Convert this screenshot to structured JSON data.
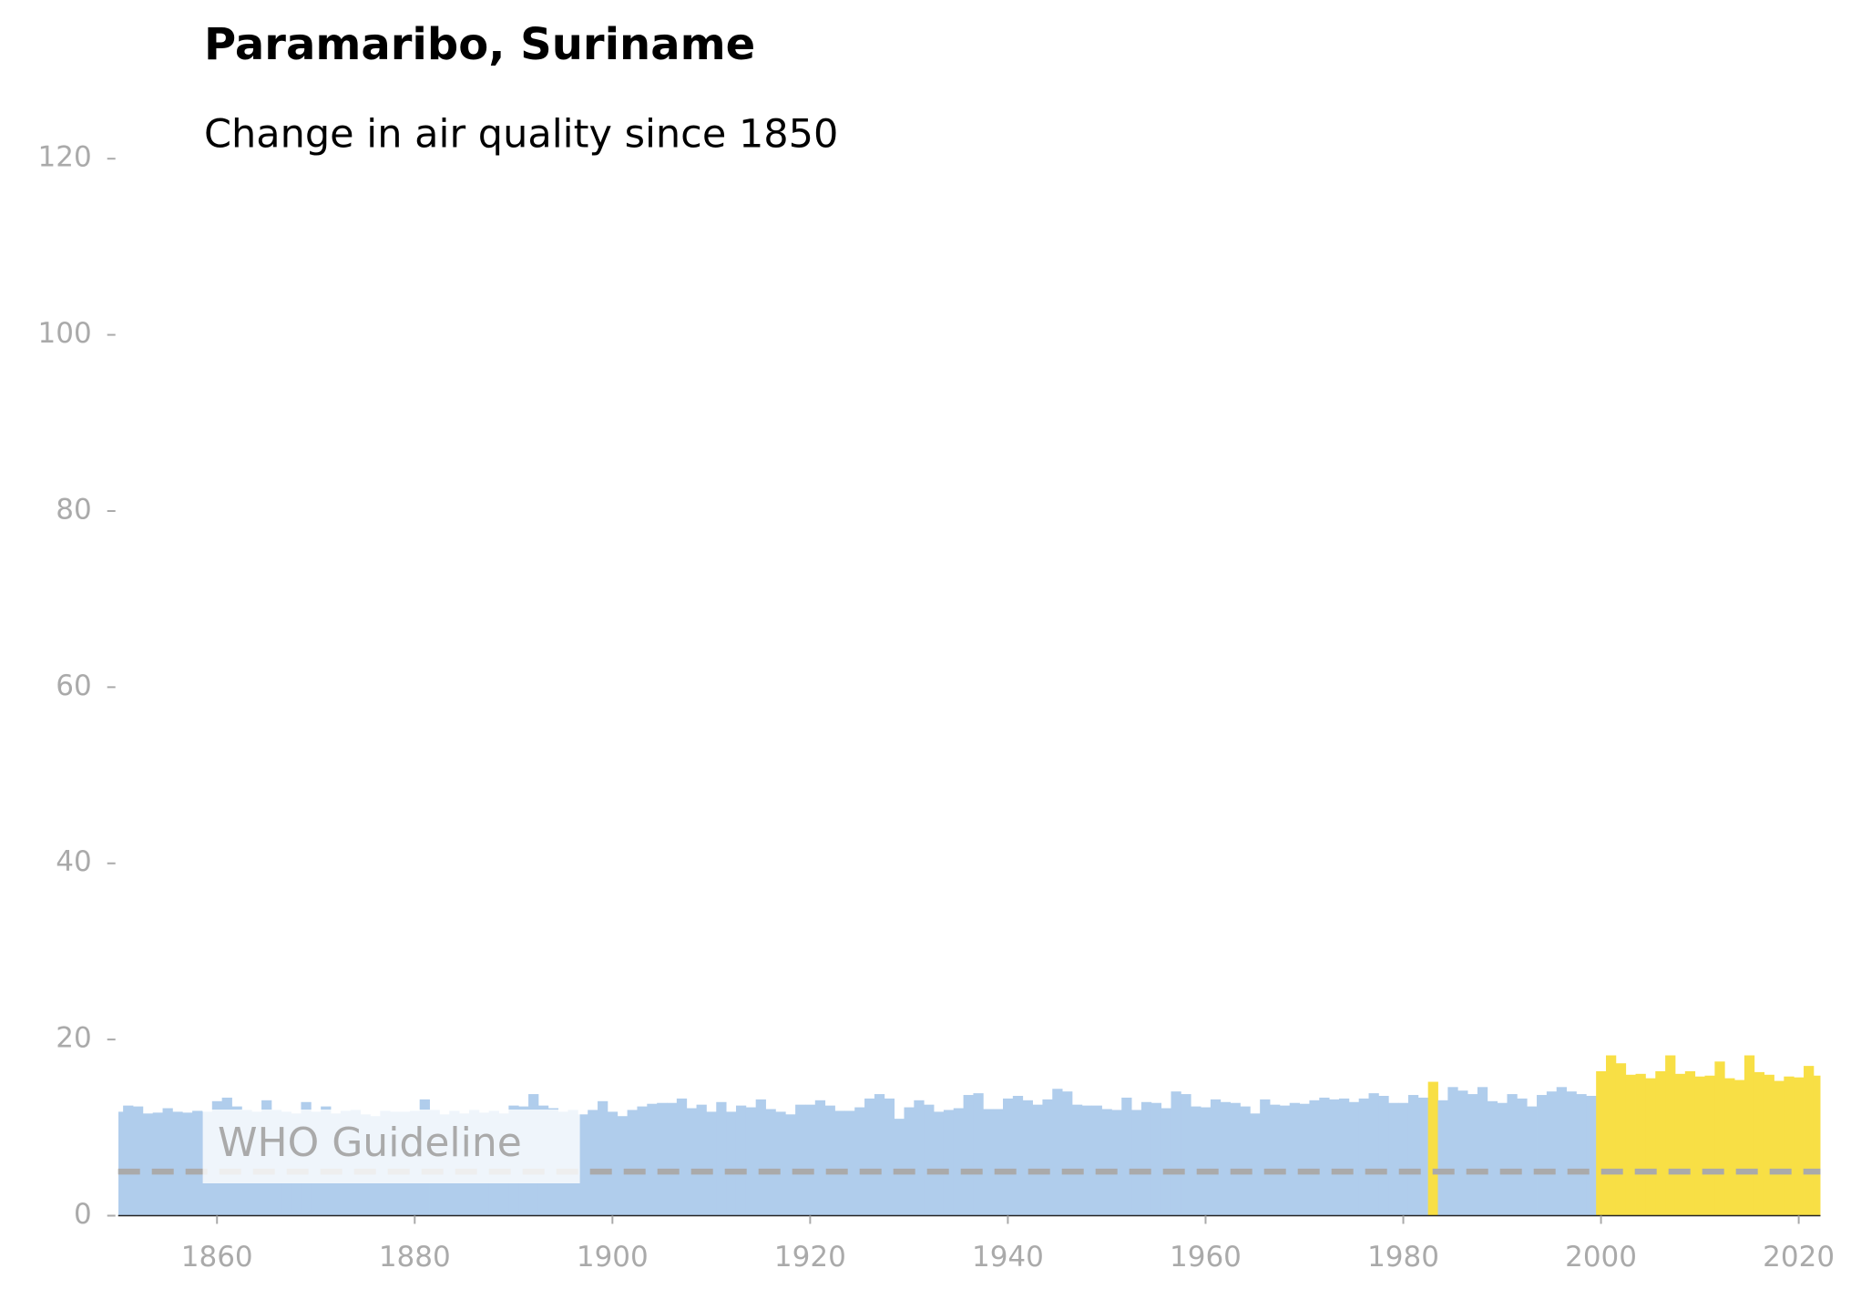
{
  "chart_data": {
    "type": "bar",
    "title": "Paramaribo, Suriname",
    "subtitle": "Change in air quality since 1850",
    "x": [
      1850,
      1851,
      1852,
      1853,
      1854,
      1855,
      1856,
      1857,
      1858,
      1859,
      1860,
      1861,
      1862,
      1863,
      1864,
      1865,
      1866,
      1867,
      1868,
      1869,
      1870,
      1871,
      1872,
      1873,
      1874,
      1875,
      1876,
      1877,
      1878,
      1879,
      1880,
      1881,
      1882,
      1883,
      1884,
      1885,
      1886,
      1887,
      1888,
      1889,
      1890,
      1891,
      1892,
      1893,
      1894,
      1895,
      1896,
      1897,
      1898,
      1899,
      1900,
      1901,
      1902,
      1903,
      1904,
      1905,
      1906,
      1907,
      1908,
      1909,
      1910,
      1911,
      1912,
      1913,
      1914,
      1915,
      1916,
      1917,
      1918,
      1919,
      1920,
      1921,
      1922,
      1923,
      1924,
      1925,
      1926,
      1927,
      1928,
      1929,
      1930,
      1931,
      1932,
      1933,
      1934,
      1935,
      1936,
      1937,
      1938,
      1939,
      1940,
      1941,
      1942,
      1943,
      1944,
      1945,
      1946,
      1947,
      1948,
      1949,
      1950,
      1951,
      1952,
      1953,
      1954,
      1955,
      1956,
      1957,
      1958,
      1959,
      1960,
      1961,
      1962,
      1963,
      1964,
      1965,
      1966,
      1967,
      1968,
      1969,
      1970,
      1971,
      1972,
      1973,
      1974,
      1975,
      1976,
      1977,
      1978,
      1979,
      1980,
      1981,
      1982,
      1983,
      1984,
      1985,
      1986,
      1987,
      1988,
      1989,
      1990,
      1991,
      1992,
      1993,
      1994,
      1995,
      1996,
      1997,
      1998,
      1999,
      2000,
      2001,
      2002,
      2003,
      2004,
      2005,
      2006,
      2007,
      2008,
      2009,
      2010,
      2011,
      2012,
      2013,
      2014,
      2015,
      2016,
      2017,
      2018,
      2019,
      2020,
      2021,
      2022
    ],
    "values": [
      11.8,
      12.5,
      12.4,
      11.6,
      11.7,
      12.2,
      11.8,
      11.7,
      11.9,
      11.8,
      13.0,
      13.4,
      12.4,
      12.0,
      11.8,
      13.1,
      12.0,
      11.8,
      11.6,
      12.9,
      11.8,
      12.4,
      11.6,
      11.9,
      12.0,
      11.5,
      11.3,
      11.9,
      11.8,
      11.8,
      11.9,
      13.2,
      12.0,
      11.5,
      11.9,
      11.6,
      12.0,
      11.7,
      11.9,
      11.6,
      12.5,
      12.4,
      13.8,
      12.5,
      12.2,
      11.8,
      12.0,
      11.5,
      12.0,
      13.0,
      11.8,
      11.3,
      12.0,
      12.4,
      12.7,
      12.8,
      12.8,
      13.3,
      12.2,
      12.6,
      11.8,
      12.9,
      11.8,
      12.5,
      12.3,
      13.2,
      12.1,
      11.8,
      11.5,
      12.6,
      12.6,
      13.1,
      12.5,
      11.9,
      11.9,
      12.3,
      13.3,
      13.8,
      13.3,
      11.0,
      12.3,
      13.1,
      12.6,
      11.8,
      12.0,
      12.2,
      13.7,
      13.9,
      12.1,
      12.1,
      13.3,
      13.6,
      13.1,
      12.6,
      13.2,
      14.4,
      14.1,
      12.6,
      12.5,
      12.5,
      12.1,
      12.0,
      13.4,
      12.0,
      12.9,
      12.8,
      12.2,
      14.1,
      13.8,
      12.4,
      12.3,
      13.2,
      12.9,
      12.8,
      12.4,
      11.6,
      13.2,
      12.6,
      12.5,
      12.8,
      12.7,
      13.1,
      13.4,
      13.2,
      13.3,
      12.9,
      13.3,
      13.9,
      13.6,
      12.8,
      12.8,
      13.7,
      13.4,
      15.2,
      13.1,
      14.6,
      14.2,
      13.8,
      14.6,
      13.0,
      12.8,
      13.8,
      13.3,
      12.4,
      13.7,
      14.1,
      14.6,
      14.1,
      13.8,
      13.6,
      16.4,
      18.2,
      17.3,
      16.0,
      16.1,
      15.6,
      16.4,
      18.2,
      16.1,
      16.4,
      15.8,
      15.9,
      17.5,
      15.6,
      15.4,
      18.2,
      16.3,
      16.0,
      15.3,
      15.8,
      15.7,
      17.0,
      15.9
    ],
    "bar_colors": [
      "#b0cdec",
      "#b0cdec",
      "#b0cdec",
      "#b0cdec",
      "#b0cdec",
      "#b0cdec",
      "#b0cdec",
      "#b0cdec",
      "#b0cdec",
      "#b0cdec",
      "#b0cdec",
      "#b0cdec",
      "#b0cdec",
      "#b0cdec",
      "#b0cdec",
      "#b0cdec",
      "#b0cdec",
      "#b0cdec",
      "#b0cdec",
      "#b0cdec",
      "#b0cdec",
      "#b0cdec",
      "#b0cdec",
      "#b0cdec",
      "#b0cdec",
      "#b0cdec",
      "#b0cdec",
      "#b0cdec",
      "#b0cdec",
      "#b0cdec",
      "#b0cdec",
      "#b0cdec",
      "#b0cdec",
      "#b0cdec",
      "#b0cdec",
      "#b0cdec",
      "#b0cdec",
      "#b0cdec",
      "#b0cdec",
      "#b0cdec",
      "#b0cdec",
      "#b0cdec",
      "#b0cdec",
      "#b0cdec",
      "#b0cdec",
      "#b0cdec",
      "#b0cdec",
      "#b0cdec",
      "#b0cdec",
      "#b0cdec",
      "#b0cdec",
      "#b0cdec",
      "#b0cdec",
      "#b0cdec",
      "#b0cdec",
      "#b0cdec",
      "#b0cdec",
      "#b0cdec",
      "#b0cdec",
      "#b0cdec",
      "#b0cdec",
      "#b0cdec",
      "#b0cdec",
      "#b0cdec",
      "#b0cdec",
      "#b0cdec",
      "#b0cdec",
      "#b0cdec",
      "#b0cdec",
      "#b0cdec",
      "#b0cdec",
      "#b0cdec",
      "#b0cdec",
      "#b0cdec",
      "#b0cdec",
      "#b0cdec",
      "#b0cdec",
      "#b0cdec",
      "#b0cdec",
      "#b0cdec",
      "#b0cdec",
      "#b0cdec",
      "#b0cdec",
      "#b0cdec",
      "#b0cdec",
      "#b0cdec",
      "#b0cdec",
      "#b0cdec",
      "#b0cdec",
      "#b0cdec",
      "#b0cdec",
      "#b0cdec",
      "#b0cdec",
      "#b0cdec",
      "#b0cdec",
      "#b0cdec",
      "#b0cdec",
      "#b0cdec",
      "#b0cdec",
      "#b0cdec",
      "#b0cdec",
      "#b0cdec",
      "#b0cdec",
      "#b0cdec",
      "#b0cdec",
      "#b0cdec",
      "#b0cdec",
      "#b0cdec",
      "#b0cdec",
      "#b0cdec",
      "#b0cdec",
      "#b0cdec",
      "#b0cdec",
      "#b0cdec",
      "#b0cdec",
      "#b0cdec",
      "#b0cdec",
      "#b0cdec",
      "#b0cdec",
      "#b0cdec",
      "#b0cdec",
      "#b0cdec",
      "#b0cdec",
      "#b0cdec",
      "#b0cdec",
      "#b0cdec",
      "#b0cdec",
      "#b0cdec",
      "#b0cdec",
      "#b0cdec",
      "#b0cdec",
      "#b0cdec",
      "#b0cdec",
      "#f8df45",
      "#b0cdec",
      "#b0cdec",
      "#b0cdec",
      "#b0cdec",
      "#b0cdec",
      "#b0cdec",
      "#b0cdec",
      "#b0cdec",
      "#b0cdec",
      "#b0cdec",
      "#b0cdec",
      "#b0cdec",
      "#b0cdec",
      "#b0cdec",
      "#b0cdec",
      "#b0cdec",
      "#f8df45",
      "#f8df45",
      "#f8df45",
      "#f8df45",
      "#f8df45",
      "#f8df45",
      "#f8df45",
      "#f8df45",
      "#f8df45",
      "#f8df45",
      "#f8df45",
      "#f8df45",
      "#f8df45",
      "#f8df45",
      "#f8df45",
      "#f8df45",
      "#f8df45",
      "#f8df45",
      "#f8df45",
      "#f8df45",
      "#f8df45",
      "#f8df45",
      "#f8df45"
    ],
    "xlim": [
      1850,
      2022.2
    ],
    "xticks": [
      1860,
      1880,
      1900,
      1920,
      1940,
      1960,
      1980,
      2000,
      2020
    ],
    "ylim": [
      0,
      120
    ],
    "yticks": [
      0,
      20,
      40,
      60,
      80,
      100,
      120
    ],
    "reference_line": {
      "value": 5,
      "label": "WHO Guideline",
      "color": "#aaaaaa"
    }
  }
}
